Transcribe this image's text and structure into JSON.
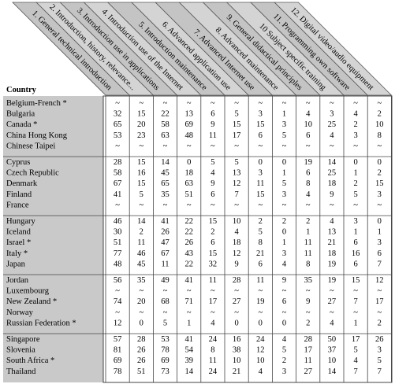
{
  "header": {
    "country_label": "Country",
    "columns": [
      "1. General technical introduction",
      "2. Introduction, history, relevance...",
      "3. Introduction use in applications",
      "4. Introduction use of the Internet",
      "5. Introduction maintenance",
      "6. Advanced application use",
      "7. Advanced Internet use",
      "8. Advanced maintenance",
      "9. General didactical principles",
      "10 Subject specific training",
      "11. Programming own software",
      "12. Digital video/audio equipment"
    ]
  },
  "table": {
    "rows": [
      [
        "Belgium-French *",
        "~",
        "~",
        "~",
        "~",
        "~",
        "~",
        "~",
        "~",
        "~",
        "~",
        "~",
        "~"
      ],
      [
        "Bulgaria",
        32,
        15,
        22,
        13,
        6,
        5,
        3,
        1,
        4,
        3,
        4,
        2
      ],
      [
        "Canada *",
        65,
        20,
        58,
        69,
        9,
        15,
        15,
        3,
        10,
        25,
        2,
        10
      ],
      [
        "China Hong Kong",
        53,
        23,
        63,
        48,
        11,
        17,
        6,
        5,
        6,
        4,
        3,
        8
      ],
      [
        "Chinese Taipei",
        "~",
        "~",
        "~",
        "~",
        "~",
        "~",
        "~",
        "~",
        "~",
        "~",
        "~",
        "~"
      ],
      [
        "Cyprus",
        28,
        15,
        14,
        0,
        5,
        5,
        0,
        0,
        19,
        14,
        0,
        0
      ],
      [
        "Czech Republic",
        58,
        16,
        45,
        18,
        4,
        13,
        3,
        1,
        6,
        25,
        1,
        2
      ],
      [
        "Denmark",
        67,
        15,
        65,
        63,
        9,
        12,
        11,
        5,
        8,
        18,
        2,
        15
      ],
      [
        "Finland",
        41,
        5,
        35,
        51,
        6,
        7,
        15,
        3,
        4,
        9,
        5,
        3
      ],
      [
        "France",
        "~",
        "~",
        "~",
        "~",
        "~",
        "~",
        "~",
        "~",
        "~",
        "~",
        "~",
        "~"
      ],
      [
        "Hungary",
        46,
        14,
        41,
        22,
        15,
        10,
        2,
        2,
        2,
        4,
        3,
        0
      ],
      [
        "Iceland",
        30,
        2,
        26,
        22,
        2,
        4,
        5,
        0,
        1,
        13,
        1,
        1
      ],
      [
        "Israel *",
        51,
        11,
        47,
        26,
        6,
        18,
        8,
        1,
        11,
        21,
        6,
        3
      ],
      [
        "Italy *",
        77,
        46,
        67,
        43,
        15,
        12,
        21,
        3,
        11,
        18,
        16,
        6
      ],
      [
        "Japan",
        48,
        45,
        11,
        22,
        32,
        9,
        6,
        4,
        8,
        19,
        6,
        7
      ],
      [
        "Jordan",
        56,
        35,
        49,
        41,
        11,
        28,
        11,
        9,
        35,
        19,
        15,
        12
      ],
      [
        "Luxembourg",
        "~",
        "~",
        "~",
        "~",
        "~",
        "~",
        "~",
        "~",
        "~",
        "~",
        "~",
        "~"
      ],
      [
        "New Zealand *",
        74,
        20,
        68,
        71,
        17,
        27,
        19,
        6,
        9,
        27,
        7,
        17
      ],
      [
        "Norway",
        "~",
        "~",
        "~",
        "~",
        "~",
        "~",
        "~",
        "~",
        "~",
        "~",
        "~",
        "~"
      ],
      [
        "Russian Federation *",
        12,
        0,
        5,
        1,
        4,
        0,
        0,
        0,
        2,
        4,
        1,
        2
      ],
      [
        "Singapore",
        57,
        28,
        53,
        41,
        24,
        16,
        24,
        4,
        28,
        50,
        17,
        26
      ],
      [
        "Slovenia",
        81,
        26,
        78,
        54,
        8,
        38,
        12,
        5,
        17,
        37,
        5,
        3
      ],
      [
        "South Africa *",
        69,
        26,
        69,
        39,
        11,
        10,
        10,
        2,
        11,
        10,
        4,
        5
      ],
      [
        "Thailand",
        78,
        51,
        73,
        14,
        24,
        21,
        4,
        3,
        27,
        14,
        7,
        7
      ]
    ]
  }
}
